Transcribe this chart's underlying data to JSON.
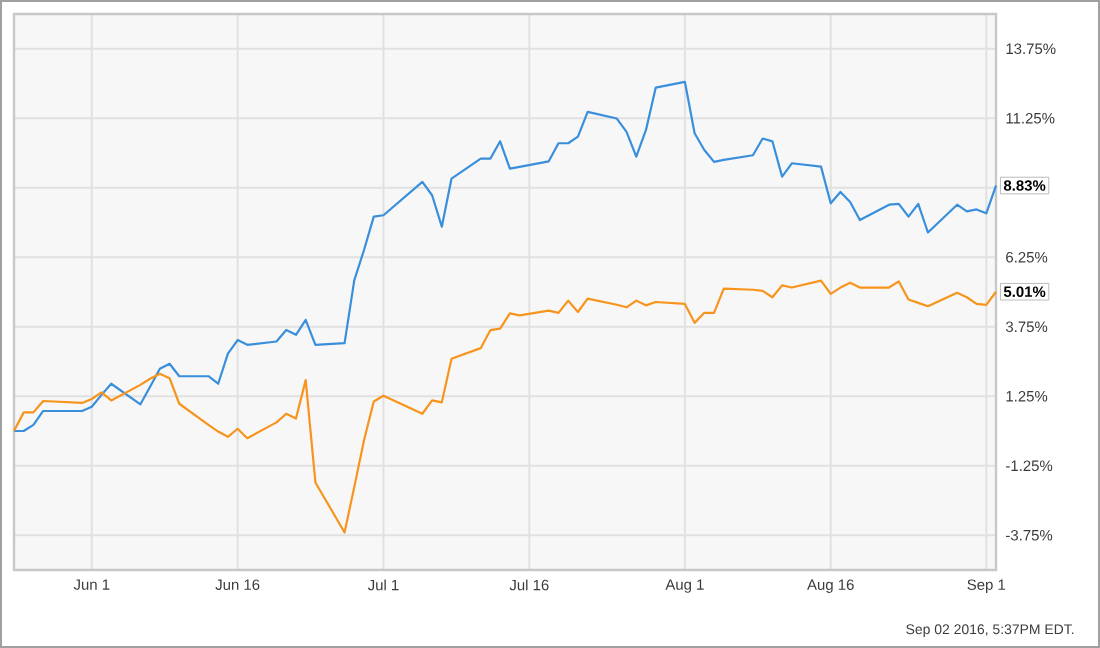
{
  "chart_data": {
    "type": "line",
    "x": [
      "2016-05-24",
      "2016-05-25",
      "2016-05-26",
      "2016-05-27",
      "2016-05-31",
      "2016-06-01",
      "2016-06-02",
      "2016-06-03",
      "2016-06-06",
      "2016-06-07",
      "2016-06-08",
      "2016-06-09",
      "2016-06-10",
      "2016-06-13",
      "2016-06-14",
      "2016-06-15",
      "2016-06-16",
      "2016-06-17",
      "2016-06-20",
      "2016-06-21",
      "2016-06-22",
      "2016-06-23",
      "2016-06-24",
      "2016-06-27",
      "2016-06-28",
      "2016-06-29",
      "2016-06-30",
      "2016-07-01",
      "2016-07-05",
      "2016-07-06",
      "2016-07-07",
      "2016-07-08",
      "2016-07-11",
      "2016-07-12",
      "2016-07-13",
      "2016-07-14",
      "2016-07-15",
      "2016-07-18",
      "2016-07-19",
      "2016-07-20",
      "2016-07-21",
      "2016-07-22",
      "2016-07-25",
      "2016-07-26",
      "2016-07-27",
      "2016-07-28",
      "2016-07-29",
      "2016-08-01",
      "2016-08-02",
      "2016-08-03",
      "2016-08-04",
      "2016-08-05",
      "2016-08-08",
      "2016-08-09",
      "2016-08-10",
      "2016-08-11",
      "2016-08-12",
      "2016-08-15",
      "2016-08-16",
      "2016-08-17",
      "2016-08-18",
      "2016-08-19",
      "2016-08-22",
      "2016-08-23",
      "2016-08-24",
      "2016-08-25",
      "2016-08-26",
      "2016-08-29",
      "2016-08-30",
      "2016-08-31",
      "2016-09-01",
      "2016-09-02"
    ],
    "series": [
      {
        "color": "#3a8fdc",
        "values": [
          0,
          0,
          0.22,
          0.72,
          0.72,
          0.87,
          1.3,
          1.7,
          0.96,
          1.59,
          2.24,
          2.42,
          1.97,
          1.97,
          1.7,
          2.78,
          3.27,
          3.1,
          3.22,
          3.63,
          3.46,
          4.0,
          3.1,
          3.16,
          5.43,
          6.51,
          7.71,
          7.76,
          8.96,
          8.48,
          7.35,
          9.08,
          9.8,
          9.8,
          10.42,
          9.44,
          9.5,
          9.7,
          10.35,
          10.35,
          10.59,
          11.48,
          11.24,
          10.76,
          9.87,
          10.83,
          12.35,
          12.56,
          10.71,
          10.11,
          9.68,
          9.75,
          9.92,
          10.52,
          10.42,
          9.15,
          9.63,
          9.51,
          8.19,
          8.6,
          8.24,
          7.59,
          8.14,
          8.17,
          7.71,
          8.17,
          7.14,
          8.14,
          7.9,
          7.97,
          7.83,
          8.83
        ]
      },
      {
        "color": "#f7941d",
        "values": [
          0,
          0.67,
          0.67,
          1.08,
          1.01,
          1.15,
          1.39,
          1.1,
          1.66,
          1.88,
          2.06,
          1.9,
          0.98,
          0.22,
          -0.02,
          -0.21,
          0.08,
          -0.26,
          0.31,
          0.62,
          0.45,
          1.83,
          -1.85,
          -3.65,
          -2.01,
          -0.33,
          1.06,
          1.27,
          0.62,
          1.1,
          1.03,
          2.6,
          2.98,
          3.63,
          3.68,
          4.23,
          4.16,
          4.33,
          4.25,
          4.69,
          4.28,
          4.76,
          4.54,
          4.45,
          4.69,
          4.52,
          4.64,
          4.57,
          3.89,
          4.25,
          4.25,
          5.12,
          5.08,
          5.04,
          4.81,
          5.24,
          5.16,
          5.41,
          4.93,
          5.16,
          5.33,
          5.16,
          5.16,
          5.38,
          4.73,
          4.61,
          4.49,
          4.97,
          4.81,
          4.57,
          4.54,
          5.01
        ]
      }
    ],
    "xlim": [
      "2016-05-24",
      "2016-09-02"
    ],
    "xticks": [
      {
        "value": "2016-06-01",
        "label": "Jun 1"
      },
      {
        "value": "2016-06-16",
        "label": "Jun 16"
      },
      {
        "value": "2016-07-01",
        "label": "Jul 1"
      },
      {
        "value": "2016-07-16",
        "label": "Jul 16"
      },
      {
        "value": "2016-08-01",
        "label": "Aug 1"
      },
      {
        "value": "2016-08-16",
        "label": "Aug 16"
      },
      {
        "value": "2016-09-01",
        "label": "Sep 1"
      }
    ],
    "ylim": [
      -5,
      15
    ],
    "yticks": [
      {
        "value": -3.75,
        "label": "-3.75%"
      },
      {
        "value": -1.25,
        "label": "-1.25%"
      },
      {
        "value": 1.25,
        "label": "1.25%"
      },
      {
        "value": 3.75,
        "label": "3.75%"
      },
      {
        "value": 6.25,
        "label": "6.25%"
      },
      {
        "value": 8.75,
        "label": null
      },
      {
        "value": 11.25,
        "label": "11.25%"
      },
      {
        "value": 13.75,
        "label": "13.75%"
      }
    ],
    "grid": true,
    "marker": "none",
    "line_style": "solid",
    "annotations": [
      {
        "text": "8.83%",
        "x": "2016-09-02",
        "y": 8.83
      },
      {
        "text": "5.01%",
        "x": "2016-09-02",
        "y": 5.01
      },
      "Sep 02 2016, 5:37PM EDT."
    ]
  }
}
